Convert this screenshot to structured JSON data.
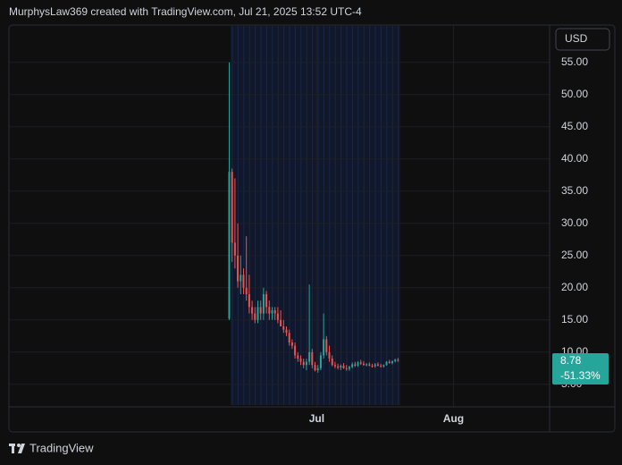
{
  "header": "MurphysLaw369 created with TradingView.com, Jul 21, 2025 13:52 UTC-4",
  "footer": "TradingView",
  "chart_data": {
    "type": "candlestick",
    "currency": "USD",
    "categories": [
      null,
      null,
      null,
      null,
      null,
      null,
      null,
      null,
      null,
      null,
      null,
      null,
      null,
      null,
      null,
      null,
      null,
      null,
      null,
      null,
      null,
      null,
      null,
      null,
      null,
      null,
      null,
      null,
      null,
      null,
      null,
      null,
      null,
      null,
      null,
      null,
      null,
      null,
      null,
      null,
      null,
      null,
      null,
      null,
      null,
      null,
      null,
      null,
      null,
      null,
      null,
      null,
      null,
      null,
      null,
      null,
      null,
      null,
      null,
      null
    ],
    "open": [
      15.2,
      38,
      27,
      25,
      21,
      22,
      20,
      19,
      17,
      16,
      15,
      17,
      16,
      19,
      17,
      16,
      16.5,
      16,
      15,
      14,
      13.5,
      13,
      11.5,
      11,
      9.5,
      9,
      8.5,
      8,
      8.5,
      10,
      8,
      7.2,
      7.5,
      9.5,
      12,
      10,
      9,
      8,
      7.8,
      7.6,
      7.9,
      7.5,
      7.4,
      7.7,
      8.1,
      7.9,
      8.4,
      8.2,
      8,
      8.1,
      7.9,
      7.8,
      8.1,
      7.9,
      7.8,
      8,
      8.5,
      8.3,
      8.6,
      8.8
    ],
    "high": [
      55,
      38.5,
      37,
      30,
      25,
      23,
      28,
      22,
      18,
      17,
      18,
      18,
      20,
      19.5,
      18,
      17,
      17,
      17,
      16.5,
      15,
      14,
      13.5,
      12,
      11.5,
      10,
      9.5,
      9,
      9,
      20.5,
      10.5,
      8.5,
      8,
      10,
      16,
      12.5,
      11,
      9.5,
      8.5,
      8.2,
      8.1,
      8.3,
      8,
      7.9,
      8.4,
      8.5,
      8.6,
      8.8,
      8.6,
      8.3,
      8.4,
      8.2,
      8.3,
      8.4,
      8.2,
      8.1,
      8.6,
      8.8,
      8.7,
      9,
      9.1
    ],
    "low": [
      15,
      24,
      23,
      20,
      19,
      19,
      18,
      16,
      15,
      14.5,
      14.5,
      15,
      15,
      16,
      15,
      15,
      15,
      14.5,
      14,
      13,
      12.5,
      11,
      10.5,
      9,
      8.5,
      8,
      7.5,
      7.2,
      8,
      7.5,
      7,
      6.8,
      7.2,
      9,
      9.5,
      8.5,
      7.8,
      7.5,
      7.3,
      7.2,
      7.4,
      7.1,
      7.1,
      7.5,
      7.7,
      7.7,
      8,
      7.9,
      7.8,
      7.8,
      7.6,
      7.6,
      7.8,
      7.6,
      7.6,
      7.9,
      8.2,
      8.1,
      8.4,
      8.5
    ],
    "close": [
      38,
      27,
      25,
      21,
      22,
      20,
      19,
      17,
      16,
      15,
      17,
      16,
      19,
      17,
      16,
      16.5,
      16,
      15,
      14,
      13.5,
      13,
      11.5,
      11,
      9.5,
      9,
      8.5,
      8,
      8.5,
      10,
      8,
      7.2,
      7.5,
      9.5,
      12,
      10,
      9,
      8,
      7.8,
      7.6,
      7.9,
      7.5,
      7.4,
      7.7,
      8.1,
      7.9,
      8.4,
      8.2,
      8,
      8.1,
      7.9,
      7.8,
      8.1,
      7.9,
      7.8,
      8,
      8.5,
      8.3,
      8.6,
      8.8,
      8.78
    ],
    "last_change": "-51.33%",
    "up_color": "#26a69a",
    "down_color": "#ef5350",
    "ylim": [
      1.5,
      60.8
    ],
    "yticks": [
      {
        "value": 5,
        "label": "5.00"
      },
      {
        "value": 10,
        "label": "10.00"
      },
      {
        "value": 15,
        "label": "15.00"
      },
      {
        "value": 20,
        "label": "20.00"
      },
      {
        "value": 25,
        "label": "25.00"
      },
      {
        "value": 30,
        "label": "30.00"
      },
      {
        "value": 35,
        "label": "35.00"
      },
      {
        "value": 40,
        "label": "40.00"
      },
      {
        "value": 45,
        "label": "45.00"
      },
      {
        "value": 50,
        "label": "50.00"
      },
      {
        "value": 55,
        "label": "55.00"
      }
    ],
    "xlim": [
      -77,
      112
    ],
    "xticks": [
      {
        "value": 30.6,
        "label": "Jul"
      },
      {
        "value": 78.4,
        "label": "Aug"
      }
    ],
    "grid": true
  }
}
